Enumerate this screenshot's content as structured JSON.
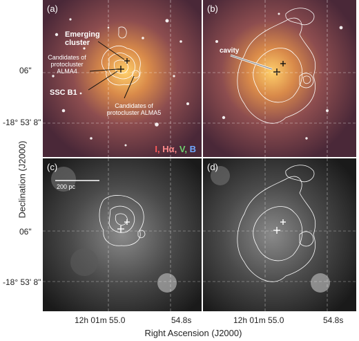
{
  "panels": {
    "a": {
      "label": "(a)"
    },
    "b": {
      "label": "(b)"
    },
    "c": {
      "label": "(c)"
    },
    "d": {
      "label": "(d)"
    }
  },
  "annotations": {
    "emerging_cluster": "Emerging cluster",
    "candidates_alma4": "Candidates of protocluster ALMA4",
    "ssc_b1": "SSC B1",
    "candidates_alma5": "Candidates of protocluster ALMA5",
    "cavity": "cavity",
    "scale_bar": "200 pc"
  },
  "legend": {
    "i": "I,",
    "ha": "Hα,",
    "v": "V,",
    "b": "B"
  },
  "colors": {
    "i": "#ff5a5a",
    "ha": "#ff8c8c",
    "v": "#6fd16f",
    "b": "#6fa8ff"
  },
  "axes": {
    "ylabel": "Declination (J2000)",
    "xlabel": "Right Ascension (J2000)",
    "ytick_06": "06\"",
    "ytick_53": "-18° 53' 8\"",
    "ytick_06_c": "06\"",
    "ytick_53_c": "-18° 53' 8\"",
    "xtick_left_c": "12h 01m 55.0",
    "xtick_right_c": "54.8s",
    "xtick_left_d": "12h 01m 55.0",
    "xtick_right_d": "54.8s"
  }
}
